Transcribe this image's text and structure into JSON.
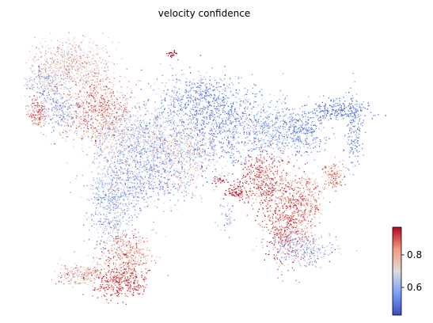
{
  "chart_data": {
    "type": "scatter",
    "title": "velocity confidence",
    "xlabel": "",
    "ylabel": "",
    "grid": false,
    "axes_visible": false,
    "colormap": "coolwarm",
    "color_range": [
      0.43,
      0.97
    ],
    "colorbar": {
      "placement": "bottom-right",
      "ticks": [
        0.6,
        0.8
      ],
      "tick_labels": [
        "0.6",
        "0.8"
      ]
    },
    "x_range": [
      0,
      10
    ],
    "y_range": [
      0,
      7
    ],
    "clusters": [
      {
        "x": 1.3,
        "y": 6.2,
        "sx": 0.55,
        "sy": 0.35,
        "n": 650,
        "c": 0.75,
        "cs": 0.07
      },
      {
        "x": 0.55,
        "y": 5.7,
        "sx": 0.3,
        "sy": 0.3,
        "n": 250,
        "c": 0.66,
        "cs": 0.1
      },
      {
        "x": 2.0,
        "y": 5.0,
        "sx": 0.45,
        "sy": 0.45,
        "n": 650,
        "c": 0.84,
        "cs": 0.07
      },
      {
        "x": 1.0,
        "y": 4.95,
        "sx": 0.3,
        "sy": 0.25,
        "n": 250,
        "c": 0.62,
        "cs": 0.08
      },
      {
        "x": 0.35,
        "y": 4.95,
        "sx": 0.12,
        "sy": 0.18,
        "n": 120,
        "c": 0.87,
        "cs": 0.05
      },
      {
        "x": 2.7,
        "y": 4.2,
        "sx": 0.45,
        "sy": 0.4,
        "n": 450,
        "c": 0.68,
        "cs": 0.09
      },
      {
        "x": 3.6,
        "y": 4.5,
        "sx": 0.55,
        "sy": 0.45,
        "n": 500,
        "c": 0.62,
        "cs": 0.08
      },
      {
        "x": 4.8,
        "y": 5.3,
        "sx": 0.55,
        "sy": 0.35,
        "n": 450,
        "c": 0.55,
        "cs": 0.06
      },
      {
        "x": 5.5,
        "y": 4.5,
        "sx": 0.7,
        "sy": 0.55,
        "n": 750,
        "c": 0.54,
        "cs": 0.06
      },
      {
        "x": 4.3,
        "y": 3.8,
        "sx": 0.6,
        "sy": 0.45,
        "n": 550,
        "c": 0.72,
        "cs": 0.08
      },
      {
        "x": 3.4,
        "y": 3.3,
        "sx": 0.55,
        "sy": 0.4,
        "n": 500,
        "c": 0.58,
        "cs": 0.07
      },
      {
        "x": 2.5,
        "y": 3.0,
        "sx": 0.35,
        "sy": 0.35,
        "n": 300,
        "c": 0.62,
        "cs": 0.08
      },
      {
        "x": 6.8,
        "y": 4.5,
        "sx": 0.4,
        "sy": 0.35,
        "n": 350,
        "c": 0.6,
        "cs": 0.08
      },
      {
        "x": 7.7,
        "y": 4.4,
        "sx": 0.35,
        "sy": 0.3,
        "n": 280,
        "c": 0.53,
        "cs": 0.05
      },
      {
        "x": 8.6,
        "y": 5.0,
        "sx": 0.45,
        "sy": 0.15,
        "n": 220,
        "c": 0.5,
        "cs": 0.05
      },
      {
        "x": 9.1,
        "y": 4.45,
        "sx": 0.12,
        "sy": 0.45,
        "n": 160,
        "c": 0.53,
        "cs": 0.06
      },
      {
        "x": 6.6,
        "y": 3.2,
        "sx": 0.35,
        "sy": 0.35,
        "n": 400,
        "c": 0.9,
        "cs": 0.05
      },
      {
        "x": 7.25,
        "y": 2.15,
        "sx": 0.35,
        "sy": 0.55,
        "n": 600,
        "c": 0.89,
        "cs": 0.05
      },
      {
        "x": 7.8,
        "y": 2.75,
        "sx": 0.2,
        "sy": 0.3,
        "n": 200,
        "c": 0.83,
        "cs": 0.07
      },
      {
        "x": 8.5,
        "y": 3.3,
        "sx": 0.15,
        "sy": 0.2,
        "n": 120,
        "c": 0.85,
        "cs": 0.06
      },
      {
        "x": 7.6,
        "y": 1.45,
        "sx": 0.5,
        "sy": 0.2,
        "n": 250,
        "c": 0.6,
        "cs": 0.08
      },
      {
        "x": 2.4,
        "y": 2.3,
        "sx": 0.3,
        "sy": 0.45,
        "n": 350,
        "c": 0.62,
        "cs": 0.08
      },
      {
        "x": 2.8,
        "y": 1.25,
        "sx": 0.35,
        "sy": 0.3,
        "n": 380,
        "c": 0.82,
        "cs": 0.07
      },
      {
        "x": 2.65,
        "y": 0.55,
        "sx": 0.35,
        "sy": 0.2,
        "n": 350,
        "c": 0.91,
        "cs": 0.05
      },
      {
        "x": 1.5,
        "y": 0.75,
        "sx": 0.35,
        "sy": 0.15,
        "n": 200,
        "c": 0.79,
        "cs": 0.09
      },
      {
        "x": 5.85,
        "y": 2.9,
        "sx": 0.18,
        "sy": 0.1,
        "n": 70,
        "c": 0.94,
        "cs": 0.03
      },
      {
        "x": 5.35,
        "y": 3.2,
        "sx": 0.1,
        "sy": 0.06,
        "n": 25,
        "c": 0.95,
        "cs": 0.02
      },
      {
        "x": 5.55,
        "y": 2.3,
        "sx": 0.1,
        "sy": 0.2,
        "n": 40,
        "c": 0.6,
        "cs": 0.1
      },
      {
        "x": 4.05,
        "y": 6.45,
        "sx": 0.08,
        "sy": 0.04,
        "n": 25,
        "c": 0.96,
        "cs": 0.01
      }
    ]
  }
}
